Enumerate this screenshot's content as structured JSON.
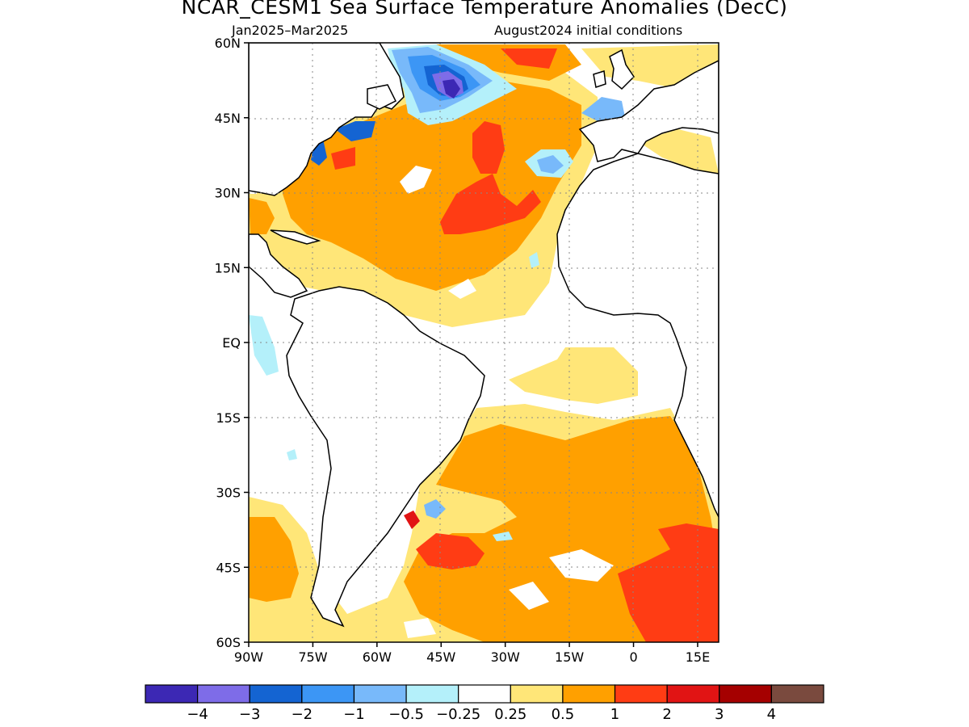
{
  "title": "NCAR_CESM1 Sea Surface Temperature Anomalies (DecC)",
  "subtitle_left": "Jan2025–Mar2025",
  "subtitle_right": "August2024 initial conditions",
  "map": {
    "lon_range": [
      -90,
      20
    ],
    "lat_range": [
      -60,
      60
    ],
    "lat_ticks": [
      {
        "value": 60,
        "label": "60N"
      },
      {
        "value": 45,
        "label": "45N"
      },
      {
        "value": 30,
        "label": "30N"
      },
      {
        "value": 15,
        "label": "15N"
      },
      {
        "value": 0,
        "label": "EQ"
      },
      {
        "value": -15,
        "label": "15S"
      },
      {
        "value": -30,
        "label": "30S"
      },
      {
        "value": -45,
        "label": "45S"
      },
      {
        "value": -60,
        "label": "60S"
      }
    ],
    "lon_ticks": [
      {
        "value": -90,
        "label": "90W"
      },
      {
        "value": -75,
        "label": "75W"
      },
      {
        "value": -60,
        "label": "60W"
      },
      {
        "value": -45,
        "label": "45W"
      },
      {
        "value": -30,
        "label": "30W"
      },
      {
        "value": -15,
        "label": "15W"
      },
      {
        "value": 0,
        "label": "0"
      },
      {
        "value": 15,
        "label": "15E"
      }
    ],
    "grid": "dotted"
  },
  "colorbar": {
    "colors": [
      "#3c28b4",
      "#7e6ce8",
      "#1464d2",
      "#3c96f5",
      "#78b9fa",
      "#b4f0fa",
      "#ffffff",
      "#ffe678",
      "#ffa000",
      "#ff3c14",
      "#e11414",
      "#a50000",
      "#7a4a3e"
    ],
    "labels": [
      "−4",
      "−3",
      "−2",
      "−1",
      "−0.5",
      "−0.25",
      "0.25",
      "0.5",
      "1",
      "2",
      "3",
      "4"
    ]
  }
}
